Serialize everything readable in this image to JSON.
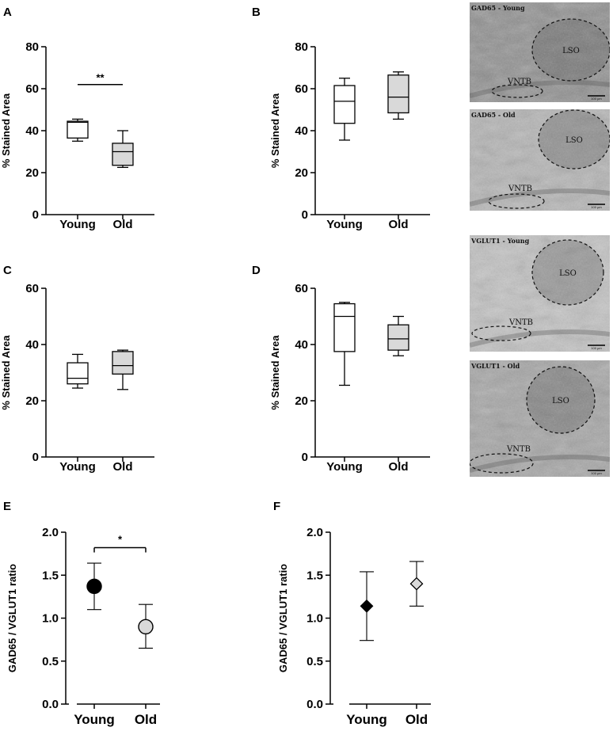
{
  "panels": [
    {
      "letter": "A"
    },
    {
      "letter": "B"
    },
    {
      "letter": "C"
    },
    {
      "letter": "D"
    },
    {
      "letter": "E"
    },
    {
      "letter": "F"
    }
  ],
  "chart_data": [
    {
      "id": "A",
      "type": "box",
      "categories": [
        "Young",
        "Old"
      ],
      "ylabel": "% Stained Area",
      "ylim": [
        0,
        80
      ],
      "yticks": [
        0,
        20,
        40,
        60,
        80
      ],
      "boxes": [
        {
          "min": 35,
          "q1": 36.5,
          "median": 44,
          "q3": 44.5,
          "max": 45.5,
          "fill": "#ffffff"
        },
        {
          "min": 22.5,
          "q1": 23.5,
          "median": 30,
          "q3": 34,
          "max": 40,
          "fill": "#d9d9d9"
        }
      ],
      "significance": {
        "label": "**",
        "y": 62
      }
    },
    {
      "id": "B",
      "type": "box",
      "categories": [
        "Young",
        "Old"
      ],
      "ylabel": "% Stained Area",
      "ylim": [
        0,
        80
      ],
      "yticks": [
        0,
        20,
        40,
        60,
        80
      ],
      "boxes": [
        {
          "min": 35.5,
          "q1": 43.5,
          "median": 54,
          "q3": 61.5,
          "max": 65,
          "fill": "#ffffff"
        },
        {
          "min": 45.5,
          "q1": 48.5,
          "median": 56,
          "q3": 66.5,
          "max": 68,
          "fill": "#d9d9d9"
        }
      ]
    },
    {
      "id": "C",
      "type": "box",
      "categories": [
        "Young",
        "Old"
      ],
      "ylabel": "% Stained Area",
      "ylim": [
        0,
        60
      ],
      "yticks": [
        0,
        20,
        40,
        60
      ],
      "boxes": [
        {
          "min": 24.5,
          "q1": 26,
          "median": 28,
          "q3": 33.5,
          "max": 36.5,
          "fill": "#ffffff"
        },
        {
          "min": 24,
          "q1": 29.5,
          "median": 32.5,
          "q3": 37.5,
          "max": 38,
          "fill": "#d9d9d9"
        }
      ]
    },
    {
      "id": "D",
      "type": "box",
      "categories": [
        "Young",
        "Old"
      ],
      "ylabel": "% Stained Area",
      "ylim": [
        0,
        60
      ],
      "yticks": [
        0,
        20,
        40,
        60
      ],
      "boxes": [
        {
          "min": 25.5,
          "q1": 37.5,
          "median": 50,
          "q3": 54.5,
          "max": 55,
          "fill": "#ffffff"
        },
        {
          "min": 36,
          "q1": 38,
          "median": 42,
          "q3": 47,
          "max": 50,
          "fill": "#d9d9d9"
        }
      ]
    },
    {
      "id": "E",
      "type": "scatter",
      "categories": [
        "Young",
        "Old"
      ],
      "ylabel": "GAD65 / VGLUT1 ratio",
      "ylim": [
        0,
        2
      ],
      "yticks": [
        "0.0",
        "0.5",
        "1.0",
        "1.5",
        "2.0"
      ],
      "points": [
        {
          "value": 1.37,
          "err_low": 1.1,
          "err_high": 1.64,
          "marker": "circle",
          "fill": "#000000"
        },
        {
          "value": 0.9,
          "err_low": 0.65,
          "err_high": 1.16,
          "marker": "circle",
          "fill": "#d9d9d9"
        }
      ],
      "significance": {
        "label": "*",
        "y": 1.82
      }
    },
    {
      "id": "F",
      "type": "scatter",
      "categories": [
        "Young",
        "Old"
      ],
      "ylabel": "GAD65 / VGLUT1 ratio",
      "ylim": [
        0,
        2
      ],
      "yticks": [
        "0.0",
        "0.5",
        "1.0",
        "1.5",
        "2.0"
      ],
      "points": [
        {
          "value": 1.14,
          "err_low": 0.74,
          "err_high": 1.54,
          "marker": "diamond",
          "fill": "#000000"
        },
        {
          "value": 1.4,
          "err_low": 1.14,
          "err_high": 1.66,
          "marker": "diamond",
          "fill": "#d9d9d9"
        }
      ]
    }
  ],
  "micrographs": [
    {
      "title": "GAD65 - Young",
      "regions": [
        "LSO",
        "VNTB"
      ],
      "scale_label": "100 µm"
    },
    {
      "title": "GAD65 - Old",
      "regions": [
        "LSO",
        "VNTB"
      ],
      "scale_label": "100 µm"
    },
    {
      "title": "VGLUT1 - Young",
      "regions": [
        "LSO",
        "VNTB"
      ],
      "scale_label": "100 µm"
    },
    {
      "title": "VGLUT1 - Old",
      "regions": [
        "LSO",
        "VNTB"
      ],
      "scale_label": "100 µm"
    }
  ]
}
